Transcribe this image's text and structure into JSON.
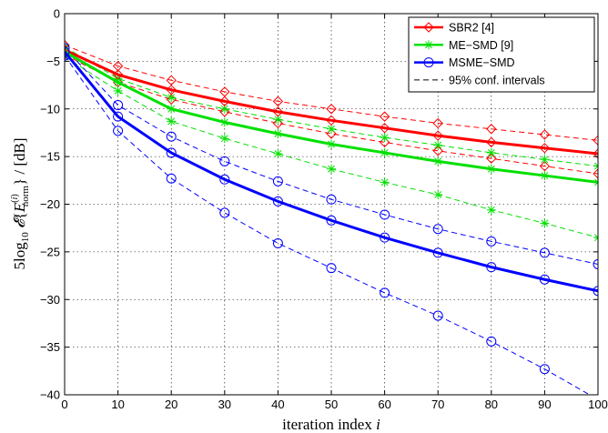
{
  "chart_data": {
    "type": "line",
    "xlabel": "iteration index i",
    "ylabel": "5log10 E{E_norm^(i)} / [dB]",
    "xlim": [
      0,
      100
    ],
    "ylim": [
      -40,
      0
    ],
    "xticks": [
      0,
      10,
      20,
      30,
      40,
      50,
      60,
      70,
      80,
      90,
      100
    ],
    "yticks": [
      0,
      -5,
      -10,
      -15,
      -20,
      -25,
      -30,
      -35,
      -40
    ],
    "grid": true,
    "legend_position": "top-right",
    "x": [
      0,
      10,
      20,
      30,
      40,
      50,
      60,
      70,
      80,
      90,
      100
    ],
    "series": [
      {
        "name": "SBR2 [4]",
        "color": "#ff0000",
        "marker": "diamond",
        "style": "solid",
        "values": [
          -3.8,
          -6.4,
          -8.0,
          -9.2,
          -10.3,
          -11.2,
          -12.0,
          -12.8,
          -13.5,
          -14.1,
          -14.7
        ]
      },
      {
        "name": "",
        "color": "#ff0000",
        "marker": "diamond",
        "style": "dashed",
        "values": [
          -3.3,
          -5.5,
          -7.0,
          -8.2,
          -9.2,
          -10.0,
          -10.8,
          -11.5,
          -12.1,
          -12.7,
          -13.3
        ]
      },
      {
        "name": "",
        "color": "#ff0000",
        "marker": "diamond",
        "style": "dashed",
        "values": [
          -4.3,
          -7.2,
          -9.0,
          -10.3,
          -11.5,
          -12.6,
          -13.5,
          -14.4,
          -15.2,
          -16.0,
          -16.8
        ]
      },
      {
        "name": "ME−SMD [9]",
        "color": "#00e000",
        "marker": "asterisk",
        "style": "solid",
        "values": [
          -4.0,
          -7.2,
          -10.0,
          -11.4,
          -12.6,
          -13.7,
          -14.6,
          -15.5,
          -16.3,
          -17.0,
          -17.7
        ]
      },
      {
        "name": "",
        "color": "#00e000",
        "marker": "asterisk",
        "style": "dashed",
        "values": [
          -3.5,
          -6.8,
          -8.8,
          -10.0,
          -11.1,
          -12.1,
          -13.0,
          -13.8,
          -14.6,
          -15.3,
          -16.0
        ]
      },
      {
        "name": "",
        "color": "#00e000",
        "marker": "asterisk",
        "style": "dashed",
        "values": [
          -4.5,
          -8.1,
          -11.3,
          -13.1,
          -14.7,
          -16.3,
          -17.7,
          -19.0,
          -20.6,
          -22.0,
          -23.5
        ]
      },
      {
        "name": "MSME−SMD",
        "color": "#0000ff",
        "marker": "circle",
        "style": "solid",
        "values": [
          -4.0,
          -10.8,
          -14.6,
          -17.4,
          -19.7,
          -21.7,
          -23.5,
          -25.1,
          -26.6,
          -27.9,
          -29.1
        ]
      },
      {
        "name": "",
        "color": "#0000ff",
        "marker": "circle",
        "style": "dashed",
        "values": [
          -3.6,
          -9.6,
          -12.9,
          -15.5,
          -17.6,
          -19.5,
          -21.1,
          -22.6,
          -23.9,
          -25.1,
          -26.3
        ]
      },
      {
        "name": "",
        "color": "#0000ff",
        "marker": "circle",
        "style": "dashed",
        "values": [
          -4.4,
          -12.3,
          -17.3,
          -20.9,
          -24.1,
          -26.7,
          -29.3,
          -31.7,
          -34.4,
          -37.3,
          -40.5
        ]
      }
    ],
    "legend": [
      {
        "label": "SBR2 [4]",
        "color": "#ff0000",
        "marker": "diamond",
        "style": "solid"
      },
      {
        "label": "ME−SMD [9]",
        "color": "#00e000",
        "marker": "asterisk",
        "style": "solid"
      },
      {
        "label": "MSME−SMD",
        "color": "#0000ff",
        "marker": "circle",
        "style": "solid"
      },
      {
        "label": "95% conf. intervals",
        "color": "#000000",
        "marker": "none",
        "style": "dashed"
      }
    ]
  }
}
